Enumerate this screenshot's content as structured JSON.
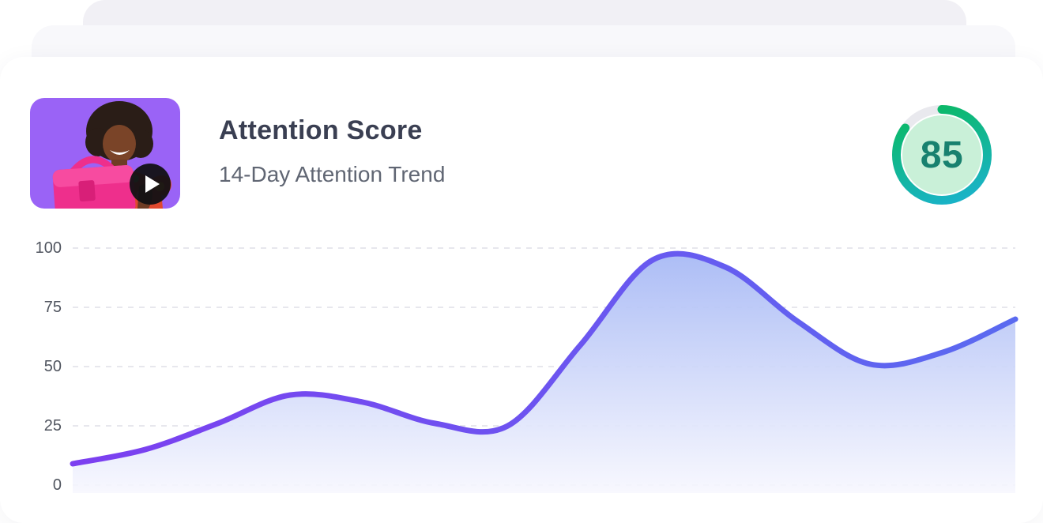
{
  "header": {
    "title": "Attention Score",
    "subtitle": "14-Day Attention Trend",
    "score": {
      "value": 85,
      "max": 100
    }
  },
  "thumbnail": {
    "description": "Smiling woman with afro holding a bright pink handbag, floral dress, purple background",
    "play_icon": "play-triangle"
  },
  "colors": {
    "stack_back": "#f1f0f5",
    "stack_mid": "#f8f8fb",
    "card_bg": "#ffffff",
    "thumb_bg": "#9a63f6",
    "title_text": "#3a3f52",
    "subtitle_text": "#606673",
    "axis_text": "#50555f",
    "gridline": "#dfdfe7",
    "line_gradient_start": "#7c3ff0",
    "line_gradient_end": "#5a6af0",
    "area_gradient_top": "#a6b8f5",
    "area_gradient_bottom": "#f7f7fe",
    "ring_track": "#e9e9ee",
    "ring_gradient_start": "#19b3c6",
    "ring_gradient_end": "#0bb966",
    "ring_inner_fill": "#c9f0d8",
    "score_text": "#18816f",
    "play_button_bg": "#121114"
  },
  "chart_data": {
    "type": "area",
    "title": "14-Day Attention Trend",
    "x": [
      1,
      2,
      3,
      4,
      5,
      6,
      7,
      8,
      9,
      10,
      11,
      12,
      13,
      14
    ],
    "series": [
      {
        "name": "Attention Score",
        "values": [
          9,
          15,
          26,
          38,
          35,
          26,
          25,
          59,
          95,
          92,
          69,
          51,
          56,
          70
        ]
      }
    ],
    "ylim": [
      0,
      100
    ],
    "yticks": [
      0,
      25,
      50,
      75,
      100
    ],
    "xlabel": "",
    "ylabel": "",
    "x_axis_labels": "none",
    "grid": "horizontal-dashed",
    "legend": "none",
    "smoothing": "spline"
  }
}
